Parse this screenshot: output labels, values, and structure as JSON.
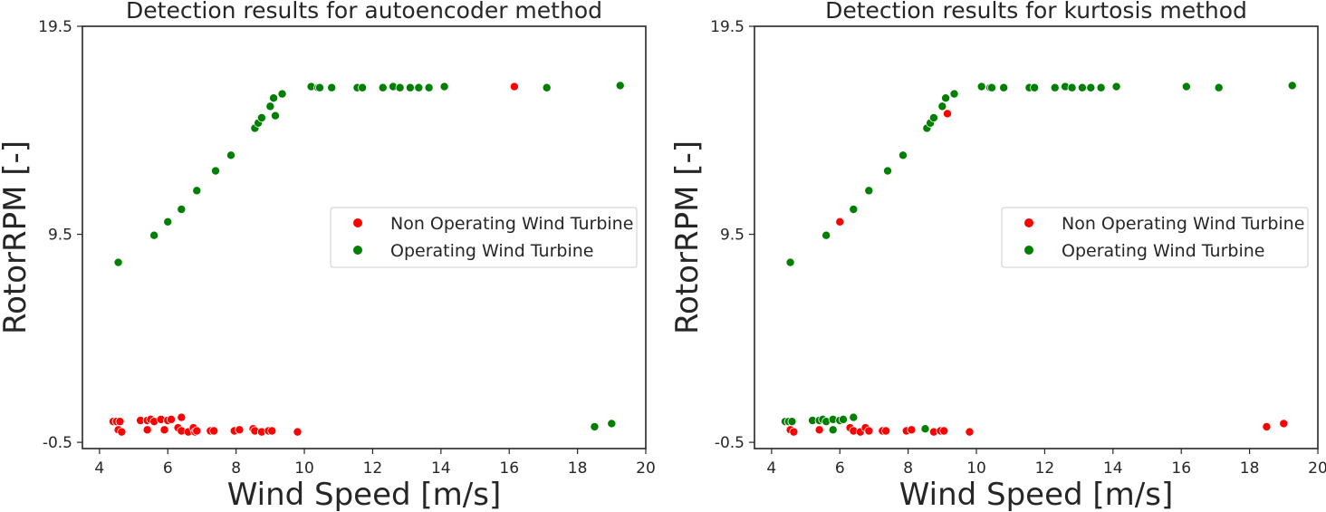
{
  "chart_data": [
    {
      "type": "scatter",
      "title": "Detection results for autoencoder method",
      "xlabel": "Wind Speed [m/s]",
      "ylabel": "RotorRPM [-]",
      "xlim": [
        3.5,
        20
      ],
      "ylim": [
        -0.8,
        19.5
      ],
      "xticks": [
        4,
        6,
        8,
        10,
        12,
        14,
        16,
        18,
        20
      ],
      "yticks": [
        19.5,
        9.5,
        -0.5
      ],
      "legend": {
        "location": "center-right",
        "entries": [
          "Non Operating Wind Turbine",
          "Operating Wind Turbine"
        ]
      },
      "series": [
        {
          "name": "Non Operating Wind Turbine",
          "color": "#ff0000",
          "points": [
            [
              4.4,
              0.5
            ],
            [
              4.5,
              0.5
            ],
            [
              4.6,
              0.5
            ],
            [
              4.55,
              0.1
            ],
            [
              4.65,
              0.0
            ],
            [
              5.2,
              0.55
            ],
            [
              5.4,
              0.55
            ],
            [
              5.5,
              0.6
            ],
            [
              5.6,
              0.5
            ],
            [
              5.8,
              0.6
            ],
            [
              6.0,
              0.55
            ],
            [
              6.1,
              0.6
            ],
            [
              5.4,
              0.1
            ],
            [
              5.9,
              0.1
            ],
            [
              6.3,
              0.2
            ],
            [
              6.4,
              0.05
            ],
            [
              6.4,
              0.7
            ],
            [
              6.6,
              0.0
            ],
            [
              6.75,
              0.2
            ],
            [
              6.8,
              0.0
            ],
            [
              6.85,
              0.05
            ],
            [
              7.25,
              0.05
            ],
            [
              7.35,
              0.05
            ],
            [
              7.95,
              0.05
            ],
            [
              8.1,
              0.1
            ],
            [
              8.5,
              0.15
            ],
            [
              8.55,
              0.05
            ],
            [
              8.75,
              0.0
            ],
            [
              8.95,
              0.05
            ],
            [
              9.05,
              0.05
            ],
            [
              9.8,
              0.0
            ],
            [
              16.15,
              16.6
            ]
          ]
        },
        {
          "name": "Operating Wind Turbine",
          "color": "#008000",
          "points": [
            [
              4.55,
              8.15
            ],
            [
              5.6,
              9.45
            ],
            [
              6.0,
              10.1
            ],
            [
              6.4,
              10.7
            ],
            [
              6.85,
              11.6
            ],
            [
              7.4,
              12.55
            ],
            [
              7.85,
              13.3
            ],
            [
              8.55,
              14.6
            ],
            [
              8.65,
              14.85
            ],
            [
              8.75,
              15.1
            ],
            [
              9.0,
              15.65
            ],
            [
              9.1,
              16.05
            ],
            [
              9.15,
              15.2
            ],
            [
              9.35,
              16.25
            ],
            [
              10.2,
              16.6
            ],
            [
              10.4,
              16.55
            ],
            [
              10.45,
              16.55
            ],
            [
              10.8,
              16.55
            ],
            [
              11.55,
              16.55
            ],
            [
              11.7,
              16.55
            ],
            [
              12.3,
              16.55
            ],
            [
              12.6,
              16.6
            ],
            [
              12.8,
              16.55
            ],
            [
              13.1,
              16.55
            ],
            [
              13.35,
              16.55
            ],
            [
              13.65,
              16.55
            ],
            [
              14.1,
              16.6
            ],
            [
              17.1,
              16.55
            ],
            [
              19.25,
              16.65
            ],
            [
              18.5,
              0.25
            ],
            [
              19.0,
              0.4
            ]
          ]
        }
      ]
    },
    {
      "type": "scatter",
      "title": "Detection results for kurtosis method",
      "xlabel": "Wind Speed [m/s]",
      "ylabel": "RotorRPM [-]",
      "xlim": [
        3.5,
        20
      ],
      "ylim": [
        -0.8,
        19.5
      ],
      "xticks": [
        4,
        6,
        8,
        10,
        12,
        14,
        16,
        18,
        20
      ],
      "yticks": [
        19.5,
        9.5,
        -0.5
      ],
      "legend": {
        "location": "center-right",
        "entries": [
          "Non Operating Wind Turbine",
          "Operating Wind Turbine"
        ]
      },
      "series": [
        {
          "name": "Non Operating Wind Turbine",
          "color": "#ff0000",
          "points": [
            [
              4.55,
              0.1
            ],
            [
              4.65,
              0.0
            ],
            [
              5.4,
              0.1
            ],
            [
              6.3,
              0.2
            ],
            [
              6.4,
              0.05
            ],
            [
              6.6,
              0.0
            ],
            [
              6.75,
              0.2
            ],
            [
              6.85,
              0.05
            ],
            [
              7.25,
              0.05
            ],
            [
              7.35,
              0.05
            ],
            [
              7.95,
              0.05
            ],
            [
              8.1,
              0.1
            ],
            [
              8.75,
              0.0
            ],
            [
              8.95,
              0.05
            ],
            [
              9.05,
              0.05
            ],
            [
              9.8,
              0.0
            ],
            [
              6.0,
              10.1
            ],
            [
              9.15,
              15.3
            ],
            [
              18.5,
              0.25
            ],
            [
              19.0,
              0.4
            ]
          ]
        },
        {
          "name": "Operating Wind Turbine",
          "color": "#008000",
          "points": [
            [
              4.4,
              0.5
            ],
            [
              4.5,
              0.5
            ],
            [
              4.6,
              0.5
            ],
            [
              5.2,
              0.55
            ],
            [
              5.4,
              0.55
            ],
            [
              5.5,
              0.6
            ],
            [
              5.6,
              0.5
            ],
            [
              5.8,
              0.6
            ],
            [
              6.0,
              0.55
            ],
            [
              6.1,
              0.6
            ],
            [
              6.4,
              0.7
            ],
            [
              5.8,
              0.1
            ],
            [
              8.5,
              0.15
            ],
            [
              4.55,
              8.15
            ],
            [
              5.6,
              9.45
            ],
            [
              6.4,
              10.7
            ],
            [
              6.85,
              11.6
            ],
            [
              7.4,
              12.55
            ],
            [
              7.85,
              13.3
            ],
            [
              8.55,
              14.6
            ],
            [
              8.65,
              14.85
            ],
            [
              8.75,
              15.1
            ],
            [
              9.0,
              15.65
            ],
            [
              9.1,
              16.05
            ],
            [
              9.35,
              16.25
            ],
            [
              10.15,
              16.6
            ],
            [
              10.4,
              16.55
            ],
            [
              10.45,
              16.55
            ],
            [
              10.8,
              16.55
            ],
            [
              11.55,
              16.55
            ],
            [
              11.7,
              16.55
            ],
            [
              12.3,
              16.55
            ],
            [
              12.6,
              16.6
            ],
            [
              12.8,
              16.55
            ],
            [
              13.1,
              16.55
            ],
            [
              13.35,
              16.55
            ],
            [
              13.65,
              16.55
            ],
            [
              14.1,
              16.6
            ],
            [
              16.15,
              16.6
            ],
            [
              17.1,
              16.55
            ],
            [
              19.25,
              16.65
            ]
          ]
        }
      ]
    }
  ]
}
